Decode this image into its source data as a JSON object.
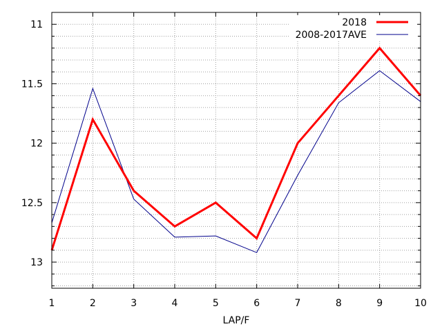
{
  "chart_data": {
    "type": "line",
    "title": "",
    "xlabel": "LAP/F",
    "ylabel": "",
    "x": [
      1,
      2,
      3,
      4,
      5,
      6,
      7,
      8,
      9,
      10
    ],
    "xlim": [
      1,
      10
    ],
    "ylim": [
      13.22,
      10.9
    ],
    "y_inverted": true,
    "x_ticks": [
      1,
      2,
      3,
      4,
      5,
      6,
      7,
      8,
      9,
      10
    ],
    "y_ticks": [
      11,
      11.5,
      12,
      12.5,
      13
    ],
    "y_tick_labels": [
      "11",
      "11.5",
      "12",
      "12.5",
      "13"
    ],
    "grid": true,
    "legend_position": "top-right",
    "series": [
      {
        "name": "2018",
        "color": "#ff0000",
        "values": [
          12.9,
          11.8,
          12.4,
          12.7,
          12.5,
          12.8,
          12.0,
          11.6,
          11.2,
          11.6
        ]
      },
      {
        "name": "2008-2017AVE",
        "color": "#00008b",
        "values": [
          12.67,
          11.54,
          12.47,
          12.79,
          12.78,
          12.92,
          12.27,
          11.66,
          11.39,
          11.65
        ]
      }
    ]
  }
}
